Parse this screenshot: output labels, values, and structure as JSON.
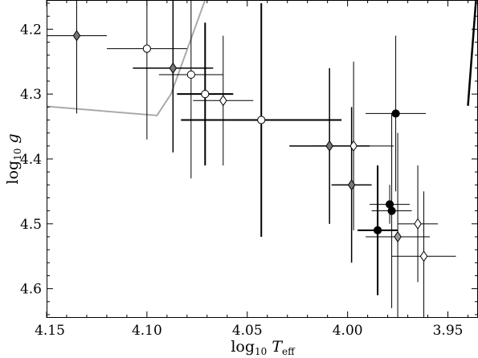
{
  "chart_data": {
    "type": "scatter",
    "title": "",
    "xlabel": {
      "main": "log",
      "sub": "10",
      "var": " T",
      "varsub": "eff"
    },
    "ylabel": {
      "main": "log",
      "sub": "10",
      "var": " g"
    },
    "xlim": [
      4.15,
      3.935
    ],
    "ylim": [
      4.645,
      4.155
    ],
    "x_ticks": [
      4.15,
      4.1,
      4.05,
      4.0,
      3.95
    ],
    "x_tick_labels": [
      "4.15",
      "4.10",
      "4.05",
      "4.00",
      "3.95"
    ],
    "y_ticks": [
      4.2,
      4.3,
      4.4,
      4.5,
      4.6
    ],
    "y_tick_labels": [
      "4.2",
      "4.3",
      "4.4",
      "4.5",
      "4.6"
    ],
    "grid": false,
    "lines": [
      {
        "color": "#aaaaaa",
        "width": 2,
        "points": [
          [
            4.15,
            4.319
          ],
          [
            4.095,
            4.333
          ],
          [
            4.088,
            4.3
          ],
          [
            4.071,
            4.155
          ]
        ]
      },
      {
        "color": "#000000",
        "width": 2.5,
        "points": [
          [
            3.94,
            4.318
          ],
          [
            3.936,
            4.155
          ]
        ]
      }
    ],
    "points": [
      {
        "x": 4.135,
        "y": 4.21,
        "xerr": 0.015,
        "yerr": 0.12,
        "marker": "diamond",
        "fill": "#777777",
        "ewidth": 1
      },
      {
        "x": 4.1,
        "y": 4.23,
        "xerr": 0.02,
        "yerr": 0.14,
        "marker": "circle",
        "fill": "#ffffff",
        "ewidth": 1
      },
      {
        "x": 4.087,
        "y": 4.26,
        "xerr": 0.02,
        "yerr": 0.13,
        "marker": "diamond",
        "fill": "#777777",
        "ewidth": 1.5
      },
      {
        "x": 4.078,
        "y": 4.27,
        "xerr": 0.016,
        "yerr": 0.16,
        "marker": "circle",
        "fill": "#ffffff",
        "ewidth": 1
      },
      {
        "x": 4.071,
        "y": 4.3,
        "xerr": 0.014,
        "yerr": 0.11,
        "marker": "circle",
        "fill": "#ffffff",
        "ewidth": 2
      },
      {
        "x": 4.062,
        "y": 4.31,
        "xerr": 0.015,
        "yerr": 0.1,
        "marker": "diamond",
        "fill": "#ffffff",
        "ewidth": 1
      },
      {
        "x": 4.043,
        "y": 4.34,
        "xerr": 0.04,
        "yerr": 0.18,
        "marker": "circle",
        "fill": "#ffffff",
        "ewidth": 2
      },
      {
        "x": 4.009,
        "y": 4.38,
        "xerr": 0.02,
        "yerr": 0.12,
        "marker": "diamond",
        "fill": "#777777",
        "ewidth": 1.5
      },
      {
        "x": 3.997,
        "y": 4.38,
        "xerr": 0.02,
        "yerr": 0.13,
        "marker": "diamond",
        "fill": "#ffffff",
        "ewidth": 1
      },
      {
        "x": 3.998,
        "y": 4.44,
        "xerr": 0.01,
        "yerr": 0.12,
        "marker": "diamond",
        "fill": "#777777",
        "ewidth": 1.5
      },
      {
        "x": 3.976,
        "y": 4.33,
        "xerr": 0.015,
        "yerr": 0.12,
        "marker": "circle",
        "fill": "#000000",
        "ewidth": 1
      },
      {
        "x": 3.979,
        "y": 4.47,
        "xerr": 0.01,
        "yerr": 0.03,
        "marker": "circle",
        "fill": "#000000",
        "ewidth": 1
      },
      {
        "x": 3.978,
        "y": 4.48,
        "xerr": 0.01,
        "yerr": 0.15,
        "marker": "circle",
        "fill": "#000000",
        "ewidth": 1
      },
      {
        "x": 3.985,
        "y": 4.51,
        "xerr": 0.01,
        "yerr": 0.1,
        "marker": "circle",
        "fill": "#000000",
        "ewidth": 2
      },
      {
        "x": 3.975,
        "y": 4.52,
        "xerr": 0.016,
        "yerr": 0.16,
        "marker": "diamond",
        "fill": "#999999",
        "ewidth": 1
      },
      {
        "x": 3.965,
        "y": 4.5,
        "xerr": 0.01,
        "yerr": 0.09,
        "marker": "diamond",
        "fill": "#ffffff",
        "ewidth": 1
      },
      {
        "x": 3.962,
        "y": 4.55,
        "xerr": 0.016,
        "yerr": 0.1,
        "marker": "diamond",
        "fill": "#ffffff",
        "ewidth": 1
      }
    ]
  }
}
